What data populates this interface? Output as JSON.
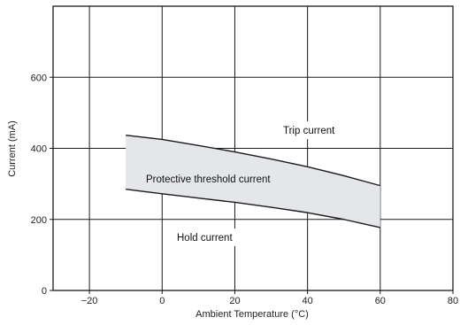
{
  "chart_data": {
    "type": "area",
    "xlabel": "Ambient Temperature (°C)",
    "ylabel": "Current (mA)",
    "xlim": [
      -30,
      80
    ],
    "ylim": [
      0,
      800
    ],
    "x_ticks": [
      -20,
      0,
      20,
      40,
      60,
      80
    ],
    "x_tick_labels": [
      "−20",
      "0",
      "20",
      "40",
      "60",
      "80"
    ],
    "y_ticks": [
      0,
      200,
      400,
      600
    ],
    "y_tick_labels": [
      "0",
      "200",
      "400",
      "600"
    ],
    "grid": true,
    "series": [
      {
        "name": "Trip current",
        "x": [
          -10,
          0,
          10,
          20,
          30,
          40,
          50,
          60
        ],
        "y": [
          437,
          425,
          408,
          390,
          370,
          348,
          323,
          295
        ]
      },
      {
        "name": "Hold current",
        "x": [
          -10,
          0,
          10,
          20,
          30,
          40,
          50,
          60
        ],
        "y": [
          285,
          272,
          260,
          248,
          234,
          219,
          200,
          177
        ]
      }
    ],
    "band_label": "Protective threshold current",
    "band_color": "#e4e6ea",
    "line_color": "#1a1a1a",
    "grid_color": "#1a1a1a"
  }
}
